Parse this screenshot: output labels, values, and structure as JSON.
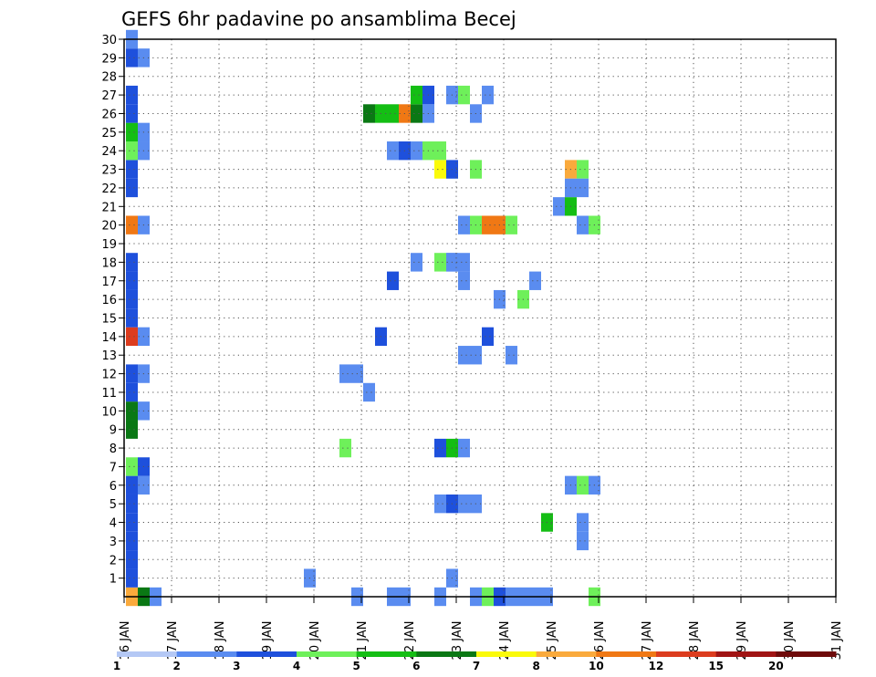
{
  "chart_data": {
    "type": "heatmap",
    "title": "GEFS 6hr padavine po ansamblima Becej",
    "xlabel": "",
    "ylabel": "",
    "x_range": [
      0,
      60
    ],
    "y_range": [
      0,
      30
    ],
    "x_tick_labels": [
      "16 JAN",
      "17 JAN",
      "18 JAN",
      "19 JAN",
      "20 JAN",
      "21 JAN",
      "22 JAN",
      "23 JAN",
      "24 JAN",
      "25 JAN",
      "26 JAN",
      "27 JAN",
      "28 JAN",
      "29 JAN",
      "30 JAN",
      "31 JAN"
    ],
    "y_tick_labels": [
      "1",
      "2",
      "3",
      "4",
      "5",
      "6",
      "7",
      "8",
      "9",
      "10",
      "11",
      "12",
      "13",
      "14",
      "15",
      "16",
      "17",
      "18",
      "19",
      "20",
      "21",
      "22",
      "23",
      "24",
      "25",
      "26",
      "27",
      "28",
      "29",
      "30"
    ],
    "legend": {
      "placement": "bottom",
      "boundaries": [
        "1",
        "2",
        "3",
        "4",
        "5",
        "6",
        "7",
        "8",
        "10",
        "12",
        "15",
        "20"
      ],
      "colors": [
        "#b4c8f5",
        "#5a8cf0",
        "#1e50dc",
        "#6ef05a",
        "#14be14",
        "#0a7814",
        "#fafa0a",
        "#faaa3c",
        "#f07814",
        "#dc3c1e",
        "#a01414",
        "#6e0a0a"
      ]
    },
    "cells": [
      [
        0,
        0,
        7
      ],
      [
        0,
        1,
        2
      ],
      [
        0,
        2,
        2
      ],
      [
        0,
        3,
        2
      ],
      [
        0,
        4,
        2
      ],
      [
        0,
        5,
        2
      ],
      [
        0,
        6,
        2
      ],
      [
        0,
        7,
        3
      ],
      [
        0,
        9,
        5
      ],
      [
        0,
        10,
        5
      ],
      [
        0,
        11,
        2
      ],
      [
        0,
        12,
        2
      ],
      [
        0,
        14,
        9
      ],
      [
        0,
        15,
        2
      ],
      [
        0,
        16,
        2
      ],
      [
        0,
        17,
        2
      ],
      [
        0,
        18,
        2
      ],
      [
        0,
        20,
        8
      ],
      [
        0,
        22,
        2
      ],
      [
        0,
        23,
        2
      ],
      [
        0,
        24,
        3
      ],
      [
        0,
        25,
        4
      ],
      [
        0,
        26,
        2
      ],
      [
        0,
        27,
        2
      ],
      [
        0,
        29,
        2
      ],
      [
        0,
        30,
        1
      ],
      [
        1,
        0,
        5
      ],
      [
        1,
        6,
        1
      ],
      [
        1,
        7,
        2
      ],
      [
        1,
        10,
        1
      ],
      [
        1,
        12,
        1
      ],
      [
        1,
        14,
        1
      ],
      [
        1,
        20,
        1
      ],
      [
        1,
        24,
        1
      ],
      [
        1,
        25,
        1
      ],
      [
        1,
        29,
        1
      ],
      [
        2,
        0,
        1
      ],
      [
        15,
        1,
        1
      ],
      [
        18,
        8,
        3
      ],
      [
        18,
        12,
        1
      ],
      [
        19,
        12,
        1
      ],
      [
        19,
        0,
        1
      ],
      [
        20,
        11,
        1
      ],
      [
        20,
        26,
        5
      ],
      [
        21,
        26,
        4
      ],
      [
        21,
        14,
        2
      ],
      [
        22,
        26,
        4
      ],
      [
        22,
        17,
        2
      ],
      [
        23,
        26,
        8
      ],
      [
        24,
        26,
        5
      ],
      [
        25,
        26,
        1
      ],
      [
        22,
        0,
        1
      ],
      [
        23,
        0,
        1
      ],
      [
        22,
        24,
        1
      ],
      [
        23,
        24,
        2
      ],
      [
        24,
        24,
        1
      ],
      [
        25,
        24,
        3
      ],
      [
        26,
        24,
        3
      ],
      [
        24,
        27,
        4
      ],
      [
        25,
        27,
        2
      ],
      [
        24,
        18,
        1
      ],
      [
        26,
        18,
        3
      ],
      [
        27,
        18,
        1
      ],
      [
        26,
        0,
        1
      ],
      [
        26,
        5,
        1
      ],
      [
        27,
        5,
        2
      ],
      [
        28,
        5,
        1
      ],
      [
        29,
        5,
        1
      ],
      [
        26,
        8,
        2
      ],
      [
        27,
        8,
        4
      ],
      [
        28,
        8,
        1
      ],
      [
        26,
        23,
        6
      ],
      [
        27,
        23,
        2
      ],
      [
        29,
        23,
        3
      ],
      [
        27,
        27,
        1
      ],
      [
        28,
        27,
        3
      ],
      [
        27,
        18,
        1
      ],
      [
        28,
        18,
        1
      ],
      [
        27,
        1,
        1
      ],
      [
        28,
        13,
        1
      ],
      [
        29,
        13,
        1
      ],
      [
        28,
        20,
        1
      ],
      [
        29,
        20,
        3
      ],
      [
        30,
        20,
        8
      ],
      [
        31,
        20,
        8
      ],
      [
        32,
        20,
        3
      ],
      [
        28,
        17,
        1
      ],
      [
        29,
        26,
        1
      ],
      [
        30,
        27,
        1
      ],
      [
        31,
        16,
        1
      ],
      [
        30,
        14,
        2
      ],
      [
        29,
        0,
        1
      ],
      [
        30,
        0,
        3
      ],
      [
        31,
        0,
        2
      ],
      [
        32,
        0,
        1
      ],
      [
        33,
        0,
        1
      ],
      [
        34,
        0,
        1
      ],
      [
        35,
        0,
        1
      ],
      [
        32,
        13,
        1
      ],
      [
        33,
        16,
        3
      ],
      [
        34,
        17,
        1
      ],
      [
        35,
        4,
        4
      ],
      [
        36,
        21,
        1
      ],
      [
        37,
        21,
        4
      ],
      [
        37,
        23,
        7
      ],
      [
        38,
        23,
        3
      ],
      [
        37,
        22,
        1
      ],
      [
        38,
        22,
        1
      ],
      [
        37,
        6,
        1
      ],
      [
        38,
        6,
        3
      ],
      [
        39,
        6,
        1
      ],
      [
        38,
        3,
        1
      ],
      [
        38,
        4,
        1
      ],
      [
        38,
        20,
        1
      ],
      [
        39,
        20,
        3
      ],
      [
        39,
        0,
        3
      ]
    ]
  }
}
